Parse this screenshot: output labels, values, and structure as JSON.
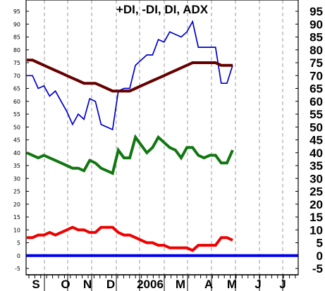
{
  "chart_data": {
    "type": "line",
    "title": "+DI, -DI, DI, ADX",
    "ylim": [
      -5,
      95
    ],
    "y_ticks": [
      -5,
      0,
      5,
      10,
      15,
      20,
      25,
      30,
      35,
      40,
      45,
      50,
      55,
      60,
      65,
      70,
      75,
      80,
      85,
      90,
      95
    ],
    "grid": true,
    "x_axis_labels": [
      "S",
      "O",
      "N",
      "D",
      "2006",
      "M",
      "A",
      "M",
      "J",
      "J"
    ],
    "series": [
      {
        "color": "#0000cc",
        "values": [
          70,
          70,
          65,
          66,
          62,
          64,
          60,
          56,
          51,
          55,
          53,
          61,
          60,
          51,
          50,
          49,
          64,
          65,
          65,
          74,
          76,
          78,
          78,
          84,
          83,
          87,
          86,
          85,
          87,
          91,
          81,
          81,
          81,
          81,
          67,
          67,
          74
        ]
      },
      {
        "color": "#660000",
        "values": [
          76,
          76,
          75,
          74,
          73,
          72,
          71,
          70,
          69,
          68,
          67,
          67,
          67,
          66,
          65,
          64,
          64,
          64,
          64,
          65,
          66,
          67,
          68,
          69,
          70,
          71,
          72,
          73,
          74,
          75,
          75,
          75,
          75,
          75,
          74,
          74,
          74
        ]
      },
      {
        "color": "#117711",
        "values": [
          40,
          39,
          38,
          39,
          38,
          37,
          36,
          35,
          34,
          34,
          33,
          37,
          36,
          34,
          33,
          32,
          41,
          38,
          38,
          46,
          43,
          40,
          42,
          46,
          44,
          42,
          41,
          38,
          42,
          42,
          39,
          38,
          39,
          39,
          36,
          36,
          41
        ]
      },
      {
        "color": "#ee0000",
        "values": [
          7,
          7,
          8,
          8,
          9,
          8,
          9,
          10,
          11,
          10,
          10,
          9,
          9,
          11,
          11,
          11,
          9,
          8,
          8,
          7,
          6,
          5,
          5,
          4,
          4,
          3,
          3,
          3,
          3,
          2,
          4,
          4,
          4,
          4,
          7,
          7,
          6
        ]
      },
      {
        "color": "#0000ee",
        "values": [
          0,
          0,
          0,
          0,
          0,
          0,
          0,
          0,
          0,
          0,
          0,
          0,
          0,
          0,
          0,
          0,
          0,
          0,
          0,
          0,
          0,
          0,
          0,
          0,
          0,
          0,
          0,
          0,
          0,
          0,
          0,
          0,
          0,
          0,
          0,
          0,
          0,
          0,
          0,
          0,
          0,
          0,
          0,
          0,
          0,
          0
        ]
      }
    ]
  }
}
